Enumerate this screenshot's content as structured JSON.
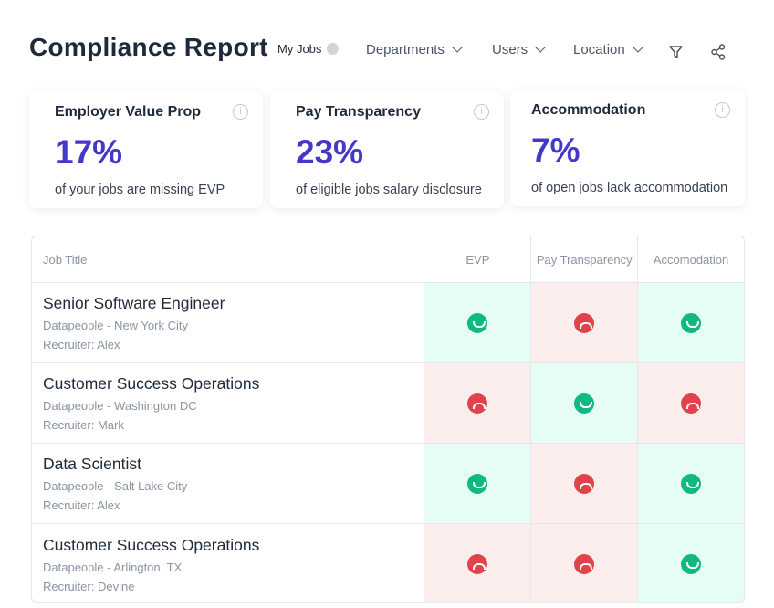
{
  "header": {
    "title": "Compliance Report",
    "my_jobs": "My Jobs",
    "departments": "Departments",
    "users": "Users",
    "location": "Location"
  },
  "cards": [
    {
      "title": "Employer Value Prop",
      "value": "17%",
      "desc": "of your jobs are missing EVP"
    },
    {
      "title": "Pay Transparency",
      "value": "23%",
      "desc": "of eligible jobs salary disclosure"
    },
    {
      "title": "Accommodation",
      "value": "7%",
      "desc": "of open jobs lack accommodation"
    }
  ],
  "table": {
    "columns": [
      "Job Title",
      "EVP",
      "Pay Transparency",
      "Accomodation"
    ],
    "rows": [
      {
        "title": "Senior Software Engineer",
        "location": "Datapeople - New York City",
        "recruiter": "Recruiter: Alex",
        "status": [
          "pass",
          "fail",
          "pass"
        ]
      },
      {
        "title": "Customer Success Operations",
        "location": "Datapeople - Washington DC",
        "recruiter": "Recruiter: Mark",
        "status": [
          "fail",
          "pass",
          "fail"
        ]
      },
      {
        "title": "Data Scientist",
        "location": "Datapeople - Salt Lake City",
        "recruiter": "Recruiter: Alex",
        "status": [
          "pass",
          "fail",
          "pass"
        ]
      },
      {
        "title": "Customer Success Operations",
        "location": "Datapeople - Arlington, TX",
        "recruiter": "Recruiter: Devine",
        "status": [
          "fail",
          "fail",
          "pass"
        ]
      }
    ]
  },
  "colors": {
    "accent": "#4338ca",
    "pass": "#10b981",
    "fail": "#e0434b"
  }
}
